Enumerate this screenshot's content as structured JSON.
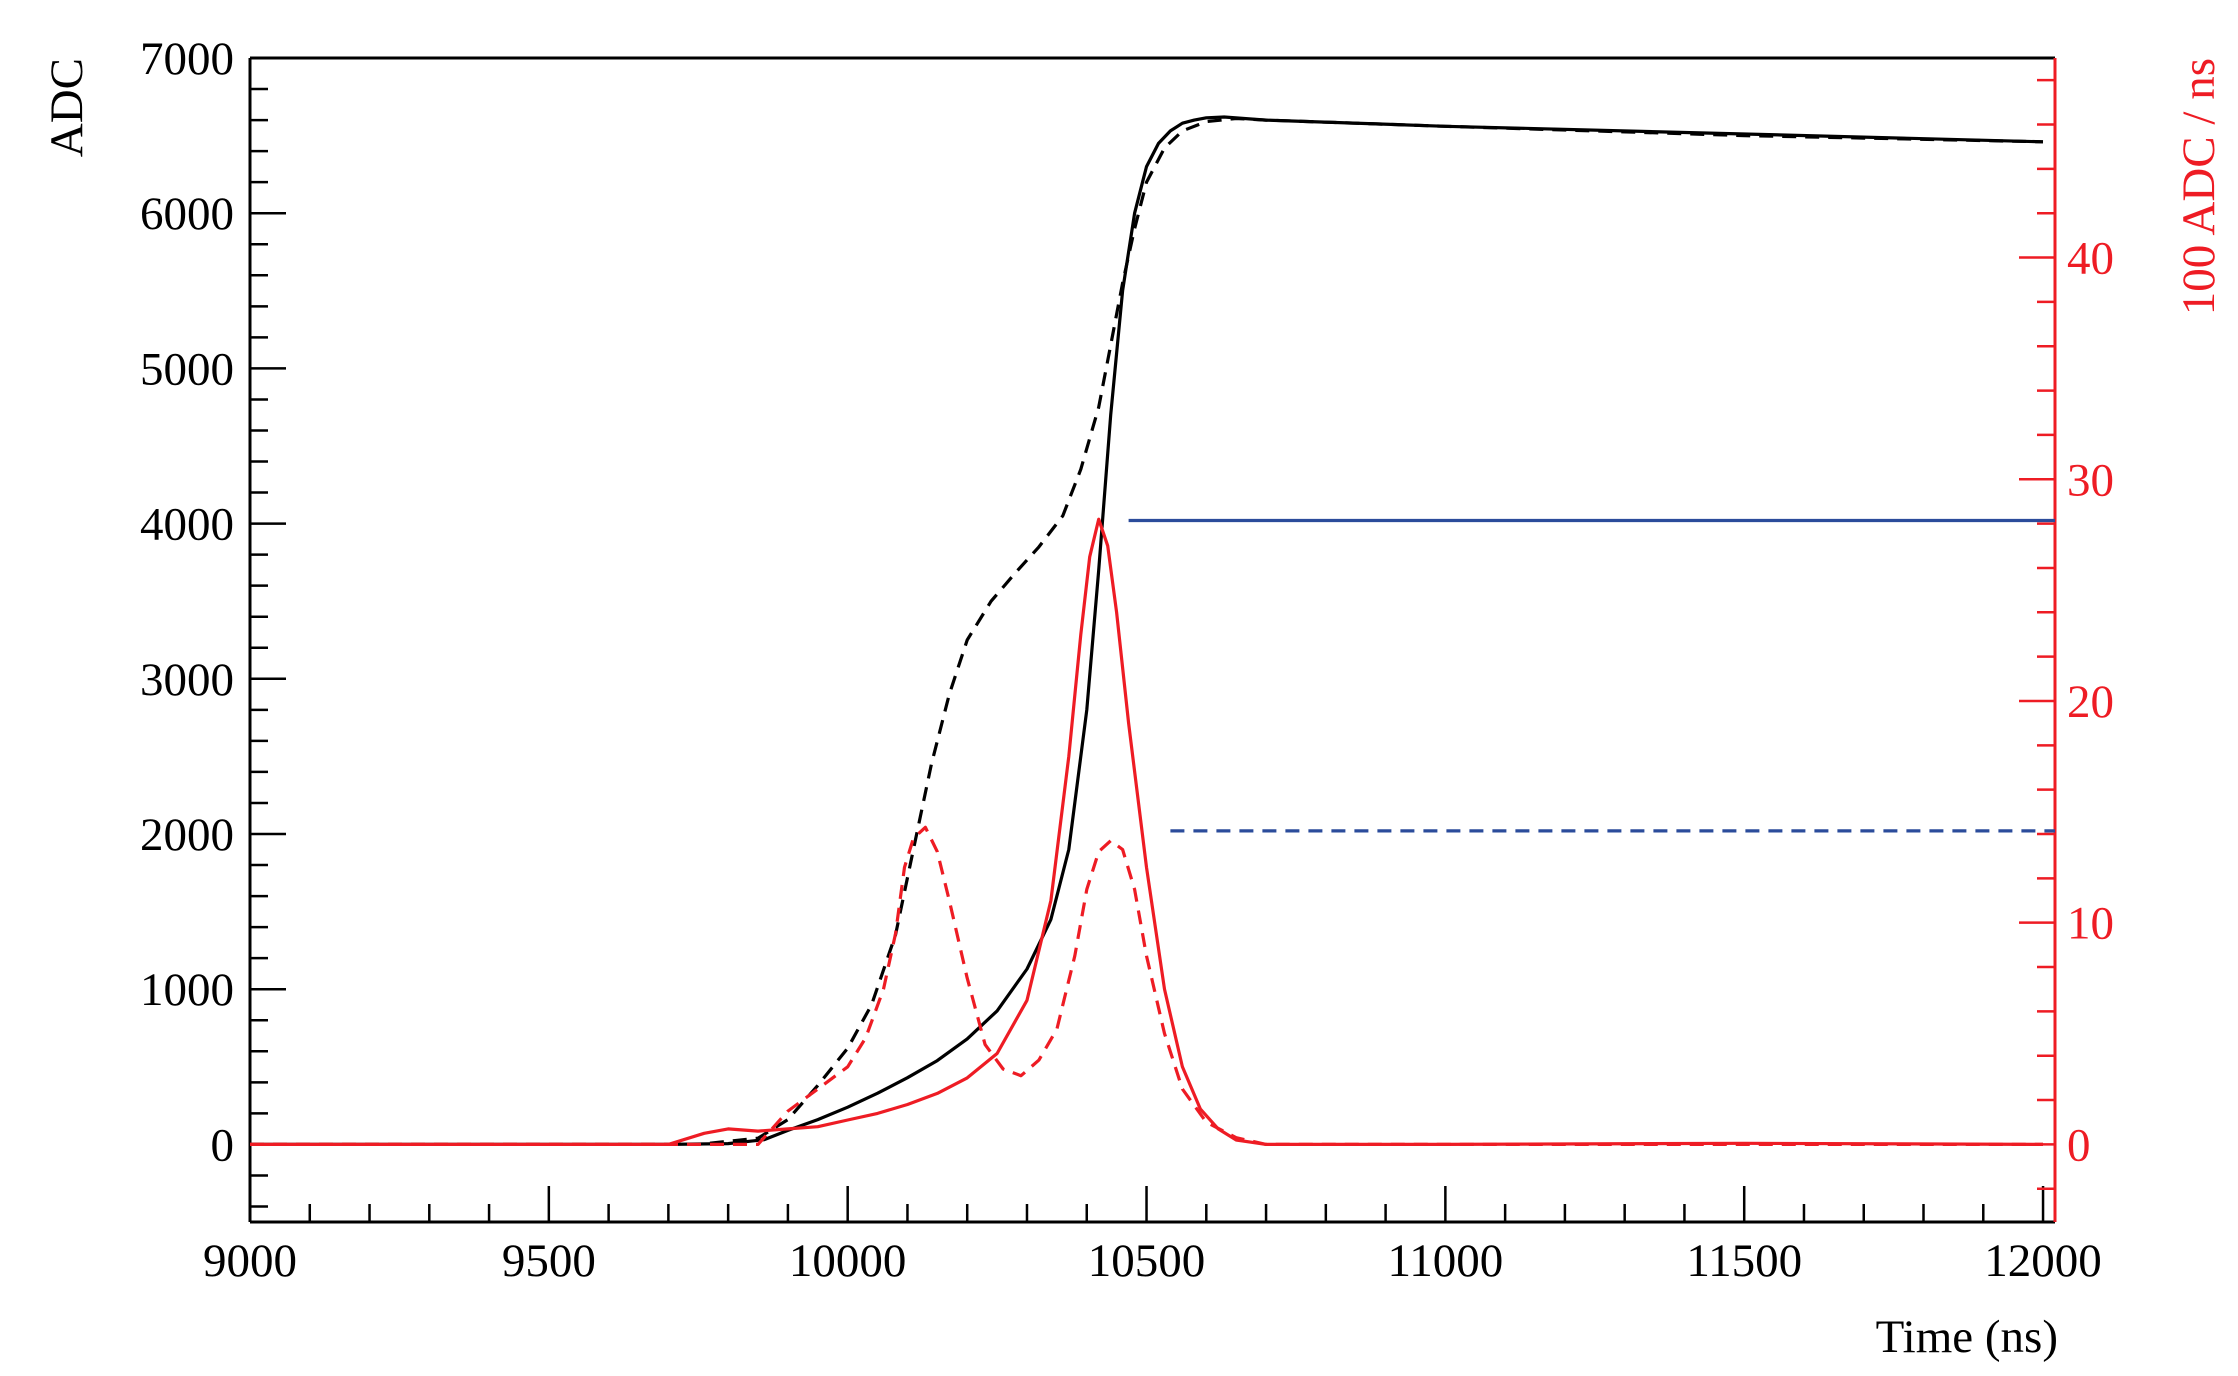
{
  "chart_data": {
    "type": "line",
    "xlabel": "Time (ns)",
    "ylabel_left": "ADC",
    "ylabel_right": "100 ADC / ns",
    "xlim": [
      9000,
      12020
    ],
    "ylim_left": [
      -500,
      7000
    ],
    "ylim_right": [
      -3.5,
      49
    ],
    "x_ticks": [
      9000,
      9500,
      10000,
      10500,
      11000,
      11500,
      12000
    ],
    "x_tick_labels": [
      "9000",
      "9500",
      "10000",
      "10500",
      "11000",
      "11500",
      "12000"
    ],
    "y_left_ticks": [
      0,
      1000,
      2000,
      3000,
      4000,
      5000,
      6000,
      7000
    ],
    "y_left_tick_labels": [
      "0",
      "1000",
      "2000",
      "3000",
      "4000",
      "5000",
      "6000",
      "7000"
    ],
    "y_right_ticks": [
      0,
      10,
      20,
      30,
      40
    ],
    "y_right_tick_labels": [
      "0",
      "10",
      "20",
      "30",
      "40"
    ],
    "grid": false,
    "colors": {
      "black": "#000000",
      "red": "#ee1c24",
      "blue": "#2b4c9b"
    },
    "series": [
      {
        "axis": "left",
        "color": "#000000",
        "dash": "solid",
        "x": [
          9000,
          9700,
          9800,
          9860,
          9900,
          9950,
          10000,
          10050,
          10100,
          10150,
          10200,
          10250,
          10300,
          10340,
          10370,
          10400,
          10420,
          10440,
          10460,
          10480,
          10500,
          10520,
          10540,
          10560,
          10580,
          10600,
          10630,
          10700,
          11000,
          11500,
          12000
        ],
        "y": [
          0,
          0,
          5,
          30,
          90,
          160,
          240,
          330,
          430,
          540,
          680,
          860,
          1130,
          1450,
          1900,
          2800,
          3700,
          4700,
          5500,
          6000,
          6300,
          6450,
          6530,
          6580,
          6600,
          6615,
          6620,
          6600,
          6560,
          6510,
          6460
        ]
      },
      {
        "axis": "left",
        "color": "#000000",
        "dash": "dashed",
        "x": [
          9000,
          9750,
          9850,
          9900,
          9950,
          10000,
          10040,
          10080,
          10110,
          10140,
          10170,
          10200,
          10240,
          10280,
          10320,
          10360,
          10390,
          10420,
          10440,
          10460,
          10480,
          10500,
          10530,
          10560,
          10600,
          10650,
          10700,
          11000,
          11500,
          12000
        ],
        "y": [
          0,
          0,
          40,
          160,
          380,
          620,
          900,
          1350,
          1900,
          2450,
          2900,
          3250,
          3500,
          3680,
          3850,
          4050,
          4350,
          4750,
          5150,
          5550,
          5900,
          6200,
          6420,
          6530,
          6590,
          6610,
          6600,
          6560,
          6500,
          6460
        ]
      },
      {
        "axis": "right",
        "color": "#ee1c24",
        "dash": "solid",
        "x": [
          9000,
          9700,
          9760,
          9800,
          9850,
          9900,
          9950,
          10000,
          10050,
          10100,
          10150,
          10200,
          10250,
          10300,
          10340,
          10370,
          10390,
          10405,
          10420,
          10435,
          10450,
          10470,
          10500,
          10530,
          10560,
          10590,
          10620,
          10650,
          10700,
          11000,
          11500,
          12000
        ],
        "y": [
          0,
          0,
          0.5,
          0.7,
          0.6,
          0.7,
          0.8,
          1.1,
          1.4,
          1.8,
          2.3,
          3.0,
          4.1,
          6.5,
          11,
          17.5,
          23,
          26.5,
          28.2,
          27,
          24,
          19,
          12.5,
          7,
          3.5,
          1.6,
          0.7,
          0.2,
          0,
          0,
          0.05,
          0
        ]
      },
      {
        "axis": "right",
        "color": "#ee1c24",
        "dash": "dashed",
        "x": [
          9000,
          9850,
          9900,
          9950,
          10000,
          10030,
          10060,
          10080,
          10095,
          10110,
          10130,
          10150,
          10170,
          10200,
          10230,
          10260,
          10290,
          10320,
          10350,
          10380,
          10400,
          10420,
          10440,
          10460,
          10480,
          10500,
          10530,
          10560,
          10600,
          10650,
          10700,
          11000,
          12000
        ],
        "y": [
          0,
          0,
          1.5,
          2.5,
          3.5,
          4.8,
          7,
          9.5,
          12.5,
          13.8,
          14.3,
          13.2,
          11,
          7.5,
          4.5,
          3.4,
          3.1,
          3.8,
          5.2,
          8.5,
          11.5,
          13.2,
          13.7,
          13.3,
          11.5,
          8.5,
          5,
          2.5,
          1,
          0.3,
          0,
          0,
          0
        ]
      },
      {
        "axis": "left",
        "color": "#2b4c9b",
        "dash": "solid",
        "x": [
          10470,
          12020
        ],
        "y": [
          4020,
          4020
        ]
      },
      {
        "axis": "left",
        "color": "#2b4c9b",
        "dash": "dashed",
        "x": [
          10540,
          12020
        ],
        "y": [
          2020,
          2020
        ]
      }
    ]
  }
}
